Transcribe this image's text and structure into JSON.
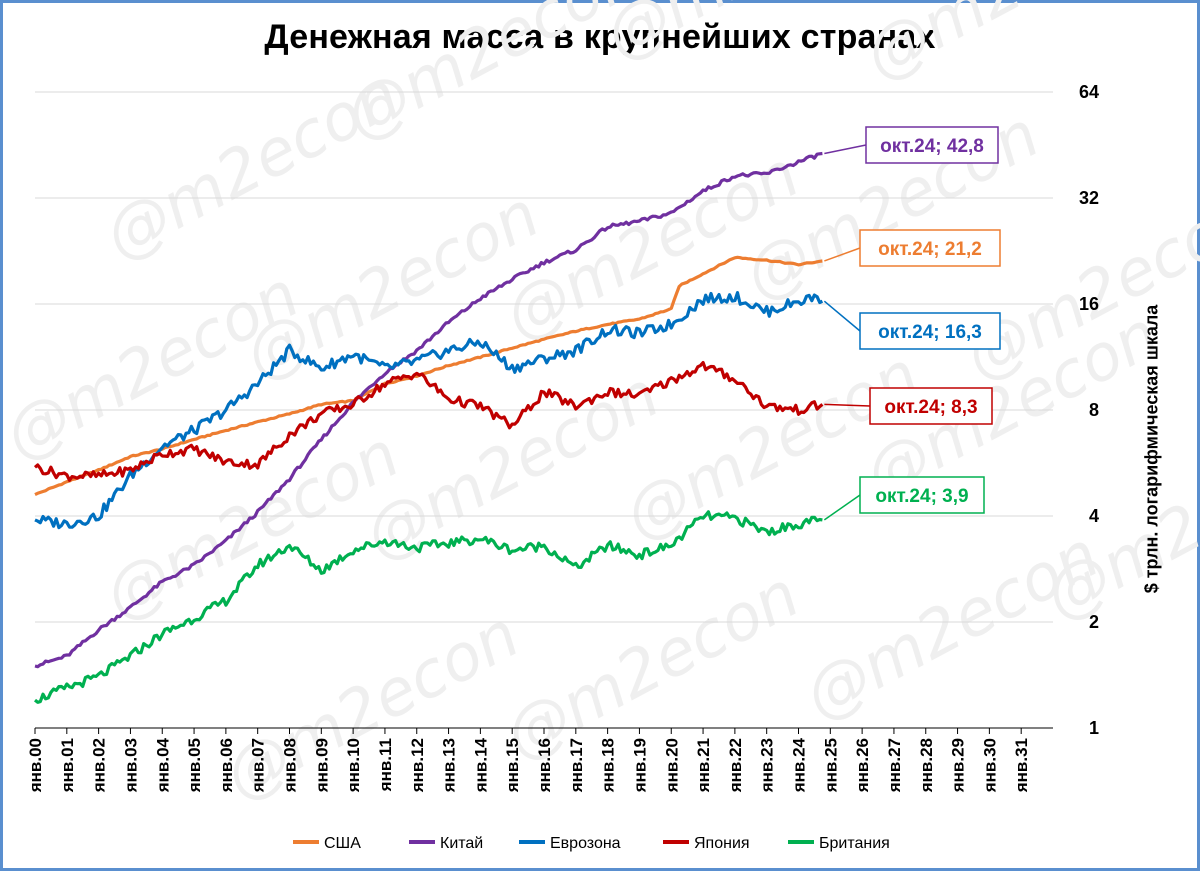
{
  "chart_data": {
    "type": "line",
    "title": "Денежная масса в крупнейших странах",
    "ylabel": "$ трлн. логарифмическая шкала",
    "xlabel": "",
    "y_scale": "log2",
    "ylim": [
      1,
      64
    ],
    "y_ticks": [
      "1",
      "2",
      "4",
      "8",
      "16",
      "32",
      "64"
    ],
    "x_ticks": [
      "янв.00",
      "янв.01",
      "янв.02",
      "янв.03",
      "янв.04",
      "янв.05",
      "янв.06",
      "янв.07",
      "янв.08",
      "янв.09",
      "янв.10",
      "янв.11",
      "янв.12",
      "янв.13",
      "янв.14",
      "янв.15",
      "янв.16",
      "янв.17",
      "янв.18",
      "янв.19",
      "янв.20",
      "янв.21",
      "янв.22",
      "янв.23",
      "янв.24",
      "янв.25",
      "янв.26",
      "янв.27",
      "янв.28",
      "янв.29",
      "янв.30",
      "янв.31"
    ],
    "grid": true,
    "legend_position": "bottom",
    "series": [
      {
        "name": "США",
        "color": "#ed7d31",
        "label": "окт.24; 21,2",
        "points": [
          [
            "янв.00",
            4.6
          ],
          [
            "янв.01",
            5.0
          ],
          [
            "янв.02",
            5.4
          ],
          [
            "янв.03",
            5.9
          ],
          [
            "янв.04",
            6.2
          ],
          [
            "янв.05",
            6.6
          ],
          [
            "янв.06",
            7.0
          ],
          [
            "янв.07",
            7.4
          ],
          [
            "янв.08",
            7.8
          ],
          [
            "янв.09",
            8.3
          ],
          [
            "янв.10",
            8.5
          ],
          [
            "янв.11",
            9.5
          ],
          [
            "янв.12",
            10.0
          ],
          [
            "янв.13",
            10.7
          ],
          [
            "янв.14",
            11.3
          ],
          [
            "янв.15",
            12.0
          ],
          [
            "янв.16",
            12.7
          ],
          [
            "янв.17",
            13.4
          ],
          [
            "янв.18",
            14.0
          ],
          [
            "янв.19",
            14.5
          ],
          [
            "янв.20",
            15.5
          ],
          [
            "апр.20",
            18.0
          ],
          [
            "янв.21",
            19.5
          ],
          [
            "янв.22",
            21.7
          ],
          [
            "янв.23",
            21.3
          ],
          [
            "янв.24",
            20.7
          ],
          [
            "окт.24",
            21.2
          ]
        ]
      },
      {
        "name": "Китай",
        "color": "#7030a0",
        "label": "окт.24; 42,8",
        "points": [
          [
            "янв.00",
            1.5
          ],
          [
            "янв.01",
            1.6
          ],
          [
            "янв.02",
            1.9
          ],
          [
            "янв.03",
            2.2
          ],
          [
            "янв.04",
            2.6
          ],
          [
            "янв.05",
            2.9
          ],
          [
            "янв.06",
            3.4
          ],
          [
            "янв.07",
            4.1
          ],
          [
            "янв.08",
            5.1
          ],
          [
            "янв.09",
            6.6
          ],
          [
            "янв.10",
            8.4
          ],
          [
            "янв.11",
            10.2
          ],
          [
            "янв.12",
            11.8
          ],
          [
            "янв.13",
            14.2
          ],
          [
            "янв.14",
            16.6
          ],
          [
            "янв.15",
            18.8
          ],
          [
            "янв.16",
            21.0
          ],
          [
            "янв.17",
            22.8
          ],
          [
            "янв.18",
            26.5
          ],
          [
            "янв.19",
            27.5
          ],
          [
            "янв.20",
            29.0
          ],
          [
            "янв.21",
            33.5
          ],
          [
            "янв.22",
            37.0
          ],
          [
            "янв.23",
            37.5
          ],
          [
            "янв.24",
            40.5
          ],
          [
            "окт.24",
            42.8
          ]
        ]
      },
      {
        "name": "Еврозона",
        "color": "#0070c0",
        "label": "окт.24; 16,3",
        "points": [
          [
            "янв.00",
            3.9
          ],
          [
            "янв.01",
            3.8
          ],
          [
            "янв.02",
            4.0
          ],
          [
            "янв.03",
            5.2
          ],
          [
            "янв.04",
            6.3
          ],
          [
            "янв.05",
            7.0
          ],
          [
            "янв.06",
            8.0
          ],
          [
            "янв.07",
            9.5
          ],
          [
            "янв.08",
            11.8
          ],
          [
            "янв.09",
            10.5
          ],
          [
            "янв.10",
            11.5
          ],
          [
            "янв.11",
            10.5
          ],
          [
            "янв.12",
            11.0
          ],
          [
            "янв.13",
            11.8
          ],
          [
            "янв.14",
            12.5
          ],
          [
            "янв.15",
            10.5
          ],
          [
            "янв.16",
            11.2
          ],
          [
            "янв.17",
            11.8
          ],
          [
            "янв.18",
            13.5
          ],
          [
            "янв.19",
            13.2
          ],
          [
            "янв.20",
            14.0
          ],
          [
            "янв.21",
            16.5
          ],
          [
            "янв.22",
            16.8
          ],
          [
            "янв.23",
            15.2
          ],
          [
            "янв.24",
            16.3
          ],
          [
            "авг.24",
            16.8
          ],
          [
            "окт.24",
            16.3
          ]
        ]
      },
      {
        "name": "Япония",
        "color": "#c00000",
        "label": "окт.24; 8,3",
        "points": [
          [
            "янв.00",
            5.5
          ],
          [
            "янв.01",
            5.2
          ],
          [
            "янв.02",
            5.2
          ],
          [
            "янв.03",
            5.4
          ],
          [
            "янв.04",
            6.0
          ],
          [
            "янв.05",
            6.2
          ],
          [
            "янв.06",
            5.7
          ],
          [
            "янв.07",
            5.6
          ],
          [
            "янв.08",
            6.8
          ],
          [
            "янв.09",
            7.8
          ],
          [
            "янв.10",
            8.3
          ],
          [
            "янв.11",
            9.5
          ],
          [
            "янв.12",
            10.2
          ],
          [
            "янв.13",
            8.6
          ],
          [
            "янв.14",
            8.2
          ],
          [
            "янв.15",
            7.2
          ],
          [
            "янв.16",
            9.0
          ],
          [
            "янв.17",
            8.2
          ],
          [
            "янв.18",
            9.0
          ],
          [
            "янв.19",
            8.8
          ],
          [
            "янв.20",
            9.7
          ],
          [
            "янв.21",
            10.7
          ],
          [
            "янв.22",
            9.8
          ],
          [
            "янв.23",
            8.2
          ],
          [
            "янв.24",
            8.0
          ],
          [
            "окт.24",
            8.3
          ]
        ]
      },
      {
        "name": "Британия",
        "color": "#00b050",
        "label": "окт.24; 3,9",
        "points": [
          [
            "янв.00",
            1.2
          ],
          [
            "янв.01",
            1.3
          ],
          [
            "янв.02",
            1.4
          ],
          [
            "янв.03",
            1.6
          ],
          [
            "янв.04",
            1.85
          ],
          [
            "янв.05",
            2.05
          ],
          [
            "янв.06",
            2.3
          ],
          [
            "янв.07",
            2.9
          ],
          [
            "янв.08",
            3.3
          ],
          [
            "янв.09",
            2.8
          ],
          [
            "янв.10",
            3.2
          ],
          [
            "янв.11",
            3.4
          ],
          [
            "янв.12",
            3.25
          ],
          [
            "янв.13",
            3.35
          ],
          [
            "янв.14",
            3.45
          ],
          [
            "янв.15",
            3.2
          ],
          [
            "янв.16",
            3.3
          ],
          [
            "янв.17",
            2.85
          ],
          [
            "янв.18",
            3.3
          ],
          [
            "янв.19",
            3.1
          ],
          [
            "янв.20",
            3.3
          ],
          [
            "янв.21",
            4.0
          ],
          [
            "янв.22",
            3.95
          ],
          [
            "янв.23",
            3.6
          ],
          [
            "янв.24",
            3.8
          ],
          [
            "окт.24",
            3.9
          ]
        ]
      }
    ],
    "legend": [
      "США",
      "Китай",
      "Еврозона",
      "Япония",
      "Британия"
    ]
  },
  "watermark": "@m2econ"
}
